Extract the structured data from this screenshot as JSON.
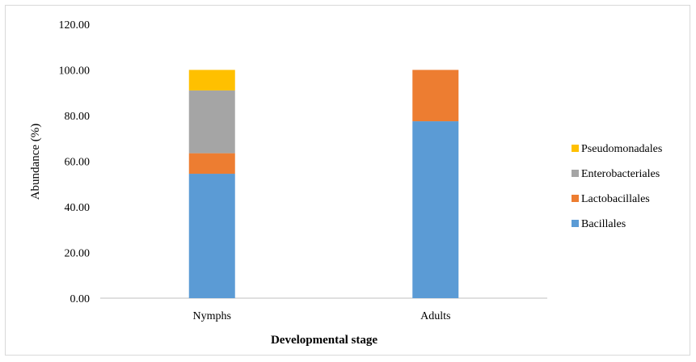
{
  "chart_data": {
    "type": "bar",
    "stacked": true,
    "title": "",
    "xlabel": "Developmental stage",
    "ylabel": "Abundance (%)",
    "ylim": [
      0,
      120
    ],
    "yticks": [
      "0.00",
      "20.00",
      "40.00",
      "60.00",
      "80.00",
      "100.00",
      "120.00"
    ],
    "categories": [
      "Nymphs",
      "Adults"
    ],
    "series": [
      {
        "name": "Bacillales",
        "color": "#5b9bd5",
        "values": [
          54.5,
          77.5
        ]
      },
      {
        "name": "Lactobacillales",
        "color": "#ed7d31",
        "values": [
          9.0,
          22.5
        ]
      },
      {
        "name": "Enterobacteriales",
        "color": "#a5a5a5",
        "values": [
          27.5,
          0
        ]
      },
      {
        "name": "Pseudomonadales",
        "color": "#ffc000",
        "values": [
          9.0,
          0
        ]
      }
    ],
    "legend": {
      "placement": "right",
      "order": [
        "Pseudomonadales",
        "Enterobacteriales",
        "Lactobacillales",
        "Bacillales"
      ]
    },
    "grid": false
  }
}
